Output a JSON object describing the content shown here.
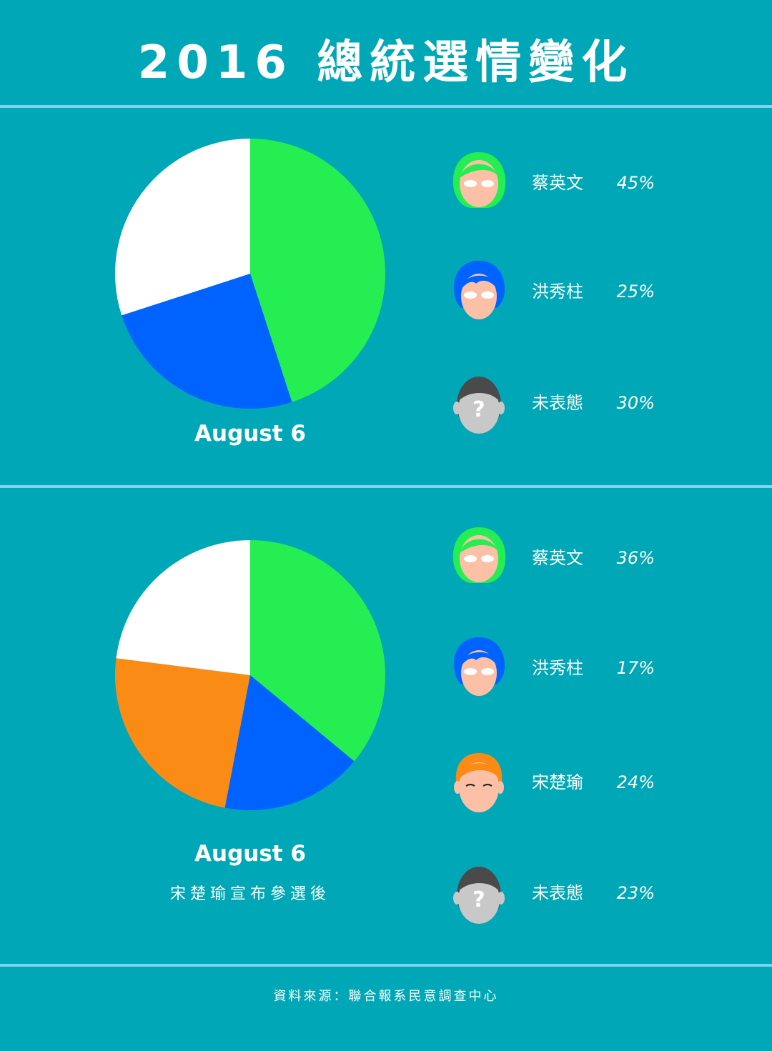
{
  "title": "2016 總統選情變化",
  "colors": {
    "background": "#00a8b7",
    "divider": "#7fd3ee",
    "tsai": "#25ee52",
    "chu": "#0062ff",
    "soong": "#fa8c16",
    "undecided": "#ffffff"
  },
  "chart_data": [
    {
      "type": "pie",
      "caption": "August 6",
      "subcaption": "",
      "slices": [
        {
          "name": "蔡英文",
          "value": 45,
          "label": "45%",
          "color": "#25ee52",
          "avatar": "tsai"
        },
        {
          "name": "洪秀柱",
          "value": 25,
          "label": "25%",
          "color": "#0062ff",
          "avatar": "chu"
        },
        {
          "name": "未表態",
          "value": 30,
          "label": "30%",
          "color": "#ffffff",
          "avatar": "unknown"
        }
      ]
    },
    {
      "type": "pie",
      "caption": "August 6",
      "subcaption": "宋楚瑜宣布參選後",
      "slices": [
        {
          "name": "蔡英文",
          "value": 36,
          "label": "36%",
          "color": "#25ee52",
          "avatar": "tsai"
        },
        {
          "name": "洪秀柱",
          "value": 17,
          "label": "17%",
          "color": "#0062ff",
          "avatar": "chu"
        },
        {
          "name": "宋楚瑜",
          "value": 24,
          "label": "24%",
          "color": "#fa8c16",
          "avatar": "soong"
        },
        {
          "name": "未表態",
          "value": 23,
          "label": "23%",
          "color": "#ffffff",
          "avatar": "unknown"
        }
      ]
    }
  ],
  "footer": "資料來源：聯合報系民意調查中心"
}
